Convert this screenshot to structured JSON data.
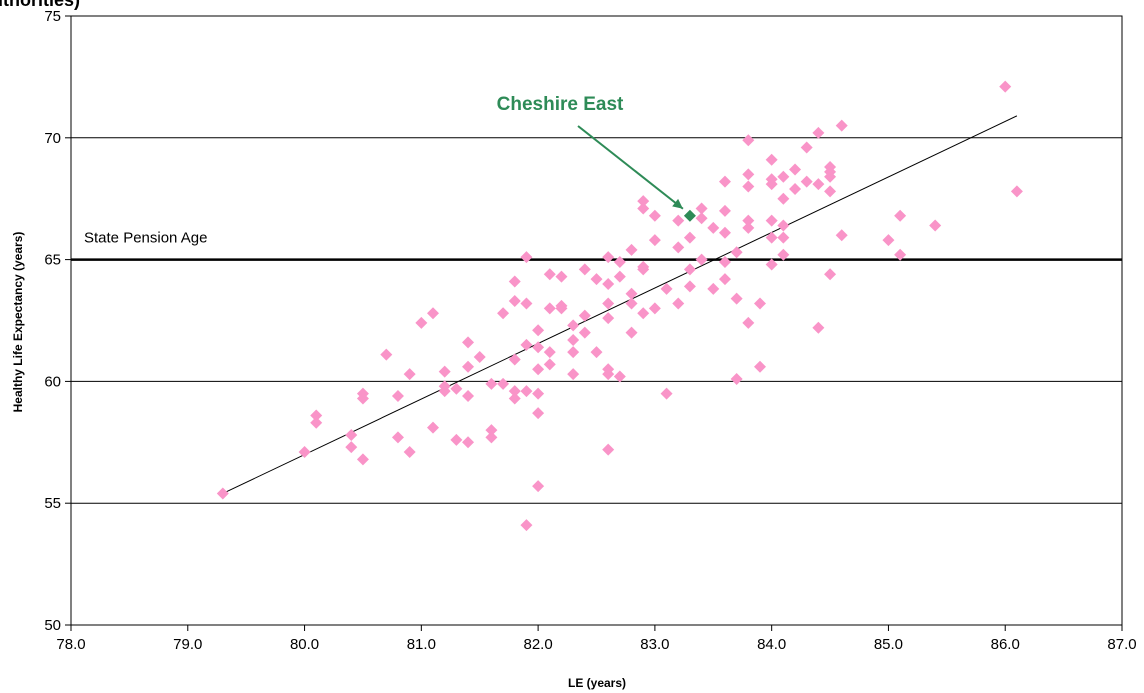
{
  "chart_data": {
    "type": "scatter",
    "title_fragment": "uthorities)",
    "xlabel": "LE (years)",
    "ylabel": "Healthy Life Expectancy (years)",
    "xlim": [
      78.0,
      87.0
    ],
    "ylim": [
      50,
      75
    ],
    "x_ticks": [
      "78.0",
      "79.0",
      "80.0",
      "81.0",
      "82.0",
      "83.0",
      "84.0",
      "85.0",
      "86.0",
      "87.0"
    ],
    "y_ticks": [
      "50",
      "55",
      "60",
      "65",
      "70",
      "75"
    ],
    "y_gridlines": [
      55,
      60,
      65,
      70
    ],
    "reference_line": {
      "label": "State Pension Age",
      "y": 65.0
    },
    "trendline": {
      "x1": 79.3,
      "y1": 55.4,
      "x2": 86.1,
      "y2": 70.9
    },
    "highlight": {
      "label": "Cheshire East",
      "x": 83.3,
      "y": 66.8
    },
    "colors": {
      "points": "#f994c8",
      "highlight": "#2e8b57",
      "grid": "#000000"
    },
    "points": [
      [
        79.3,
        55.4
      ],
      [
        80.0,
        57.1
      ],
      [
        80.1,
        58.6
      ],
      [
        80.1,
        58.3
      ],
      [
        80.4,
        57.8
      ],
      [
        80.4,
        57.3
      ],
      [
        80.5,
        59.5
      ],
      [
        80.5,
        59.3
      ],
      [
        80.5,
        56.8
      ],
      [
        80.7,
        61.1
      ],
      [
        80.8,
        59.4
      ],
      [
        80.8,
        57.7
      ],
      [
        80.9,
        60.3
      ],
      [
        80.9,
        57.1
      ],
      [
        81.0,
        62.4
      ],
      [
        81.1,
        62.8
      ],
      [
        81.1,
        58.1
      ],
      [
        81.2,
        60.4
      ],
      [
        81.2,
        59.8
      ],
      [
        81.2,
        59.6
      ],
      [
        81.3,
        59.7
      ],
      [
        81.3,
        57.6
      ],
      [
        81.4,
        61.6
      ],
      [
        81.4,
        60.6
      ],
      [
        81.4,
        59.4
      ],
      [
        81.4,
        57.5
      ],
      [
        81.5,
        61.0
      ],
      [
        81.6,
        59.9
      ],
      [
        81.6,
        58.0
      ],
      [
        81.6,
        57.7
      ],
      [
        81.7,
        62.8
      ],
      [
        81.7,
        59.9
      ],
      [
        81.8,
        64.1
      ],
      [
        81.8,
        63.3
      ],
      [
        81.8,
        60.9
      ],
      [
        81.8,
        59.6
      ],
      [
        81.8,
        59.3
      ],
      [
        81.9,
        65.1
      ],
      [
        81.9,
        63.2
      ],
      [
        81.9,
        61.5
      ],
      [
        81.9,
        59.6
      ],
      [
        81.9,
        54.1
      ],
      [
        82.0,
        62.1
      ],
      [
        82.0,
        61.4
      ],
      [
        82.0,
        60.5
      ],
      [
        82.0,
        59.5
      ],
      [
        82.0,
        58.7
      ],
      [
        82.0,
        55.7
      ],
      [
        82.1,
        64.4
      ],
      [
        82.1,
        63.0
      ],
      [
        82.1,
        61.2
      ],
      [
        82.1,
        60.7
      ],
      [
        82.2,
        64.3
      ],
      [
        82.2,
        63.1
      ],
      [
        82.2,
        63.0
      ],
      [
        82.3,
        62.3
      ],
      [
        82.3,
        61.7
      ],
      [
        82.3,
        61.2
      ],
      [
        82.3,
        60.3
      ],
      [
        82.4,
        64.6
      ],
      [
        82.4,
        62.7
      ],
      [
        82.4,
        62.0
      ],
      [
        82.5,
        64.2
      ],
      [
        82.5,
        61.2
      ],
      [
        82.6,
        65.1
      ],
      [
        82.6,
        64.0
      ],
      [
        82.6,
        63.2
      ],
      [
        82.6,
        62.6
      ],
      [
        82.6,
        60.5
      ],
      [
        82.6,
        60.3
      ],
      [
        82.6,
        57.2
      ],
      [
        82.7,
        64.9
      ],
      [
        82.7,
        64.3
      ],
      [
        82.7,
        60.2
      ],
      [
        82.8,
        65.4
      ],
      [
        82.8,
        63.6
      ],
      [
        82.8,
        63.2
      ],
      [
        82.8,
        62.0
      ],
      [
        82.9,
        67.4
      ],
      [
        82.9,
        67.1
      ],
      [
        82.9,
        64.7
      ],
      [
        82.9,
        64.6
      ],
      [
        82.9,
        62.8
      ],
      [
        83.0,
        66.8
      ],
      [
        83.0,
        65.8
      ],
      [
        83.0,
        63.0
      ],
      [
        83.1,
        63.8
      ],
      [
        83.1,
        59.5
      ],
      [
        83.2,
        66.6
      ],
      [
        83.2,
        65.5
      ],
      [
        83.2,
        63.2
      ],
      [
        83.3,
        65.9
      ],
      [
        83.3,
        64.6
      ],
      [
        83.3,
        63.9
      ],
      [
        83.4,
        67.1
      ],
      [
        83.4,
        66.7
      ],
      [
        83.4,
        65.0
      ],
      [
        83.5,
        66.3
      ],
      [
        83.5,
        63.8
      ],
      [
        83.6,
        68.2
      ],
      [
        83.6,
        67.0
      ],
      [
        83.6,
        66.1
      ],
      [
        83.6,
        64.9
      ],
      [
        83.6,
        64.2
      ],
      [
        83.7,
        65.3
      ],
      [
        83.7,
        63.4
      ],
      [
        83.7,
        60.1
      ],
      [
        83.8,
        69.9
      ],
      [
        83.8,
        68.5
      ],
      [
        83.8,
        68.0
      ],
      [
        83.8,
        66.6
      ],
      [
        83.8,
        66.3
      ],
      [
        83.8,
        62.4
      ],
      [
        83.9,
        63.2
      ],
      [
        83.9,
        60.6
      ],
      [
        84.0,
        69.1
      ],
      [
        84.0,
        68.3
      ],
      [
        84.0,
        68.1
      ],
      [
        84.0,
        66.6
      ],
      [
        84.0,
        65.9
      ],
      [
        84.0,
        64.8
      ],
      [
        84.1,
        68.4
      ],
      [
        84.1,
        67.5
      ],
      [
        84.1,
        66.4
      ],
      [
        84.1,
        65.9
      ],
      [
        84.1,
        65.2
      ],
      [
        84.2,
        68.7
      ],
      [
        84.2,
        67.9
      ],
      [
        84.3,
        69.6
      ],
      [
        84.3,
        68.2
      ],
      [
        84.4,
        70.2
      ],
      [
        84.4,
        68.1
      ],
      [
        84.4,
        62.2
      ],
      [
        84.5,
        68.8
      ],
      [
        84.5,
        68.6
      ],
      [
        84.5,
        68.4
      ],
      [
        84.5,
        67.8
      ],
      [
        84.5,
        64.4
      ],
      [
        84.6,
        70.5
      ],
      [
        84.6,
        66.0
      ],
      [
        85.0,
        65.8
      ],
      [
        85.1,
        66.8
      ],
      [
        85.1,
        65.2
      ],
      [
        85.4,
        66.4
      ],
      [
        86.0,
        72.1
      ],
      [
        86.1,
        67.8
      ]
    ]
  }
}
